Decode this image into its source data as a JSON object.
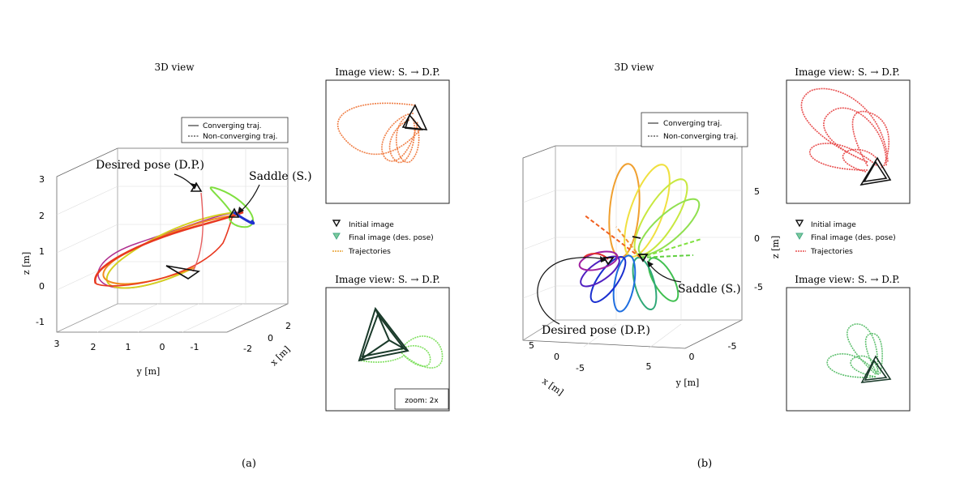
{
  "panel_a": {
    "title": "3D view",
    "caption": "(a)",
    "legend": {
      "converging": "Converging traj.",
      "non_converging": "Non-converging traj."
    },
    "annotations": {
      "desired": "Desired pose (D.P.)",
      "saddle": "Saddle (S.)"
    },
    "z_ticks": [
      "3",
      "2",
      "1",
      "0",
      "-1"
    ],
    "y_ticks": [
      "3",
      "2",
      "1",
      "0",
      "-1"
    ],
    "x_ticks": [
      "2",
      "0",
      "-2"
    ],
    "z_label": "z [m]",
    "y_label": "y [m]",
    "x_label": "x [m]",
    "image_view_top": {
      "title": "Image view: S. → D.P."
    },
    "image_view_bottom": {
      "title": "Image view: S. → D.P.",
      "zoom": "zoom: 2x"
    },
    "legend2": {
      "initial": "Initial image",
      "final": "Final image (des. pose)",
      "traj": "Trajectories"
    }
  },
  "panel_b": {
    "title": "3D view",
    "caption": "(b)",
    "legend": {
      "converging": "Converging traj.",
      "non_converging": "Non-converging traj."
    },
    "annotations": {
      "desired": "Desired pose (D.P.)",
      "saddle": "Saddle (S.)"
    },
    "z_ticks": [
      "5",
      "0",
      "-5"
    ],
    "x_ticks": [
      "5",
      "0",
      "-5"
    ],
    "y_ticks": [
      "5",
      "0",
      "-5"
    ],
    "z_label": "z [m]",
    "x_label": "x [m]",
    "y_label": "y [m]",
    "image_view_top": {
      "title": "Image view: S. → D.P."
    },
    "image_view_bottom": {
      "title": "Image view: S. → D.P."
    },
    "legend2": {
      "initial": "Initial image",
      "final": "Final image (des. pose)",
      "traj": "Trajectories"
    }
  }
}
